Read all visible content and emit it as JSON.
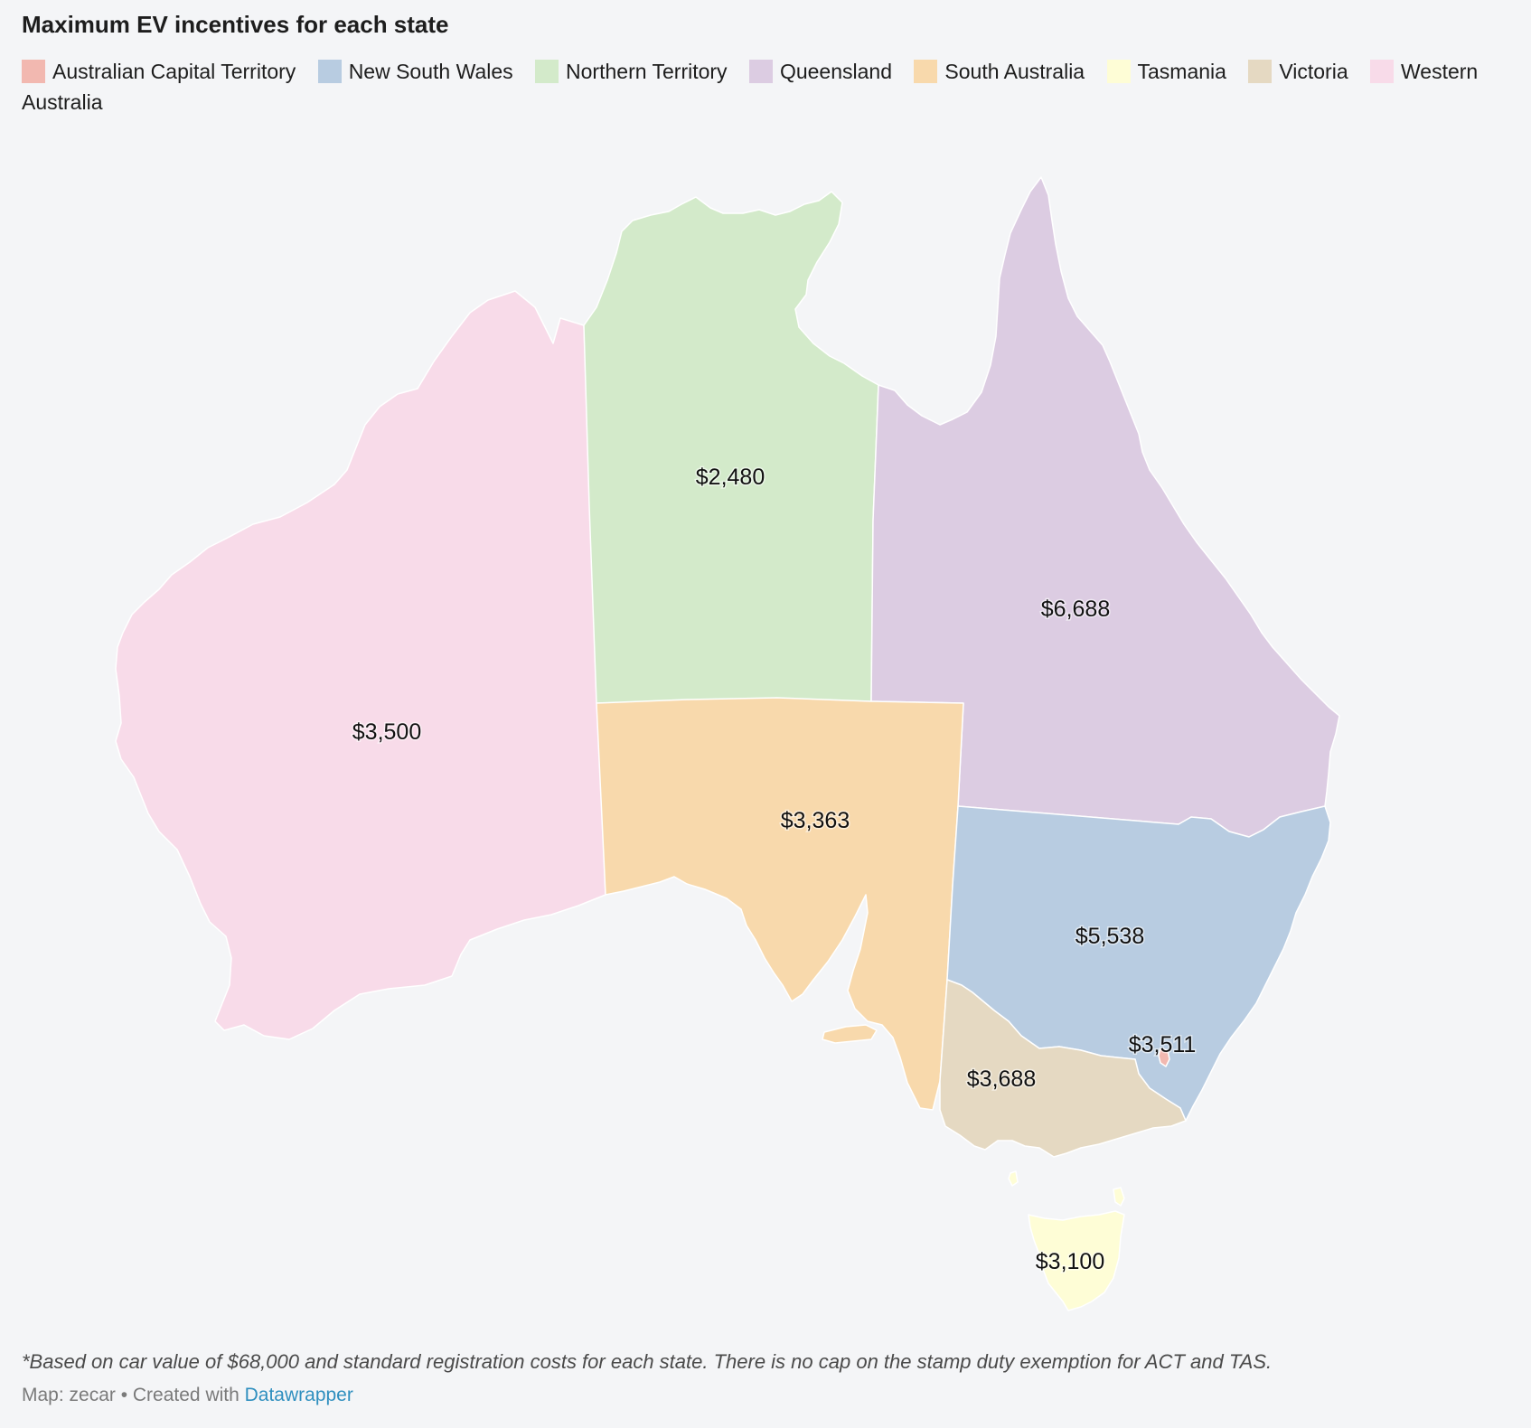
{
  "title": "Maximum EV incentives for each state",
  "legend": [
    {
      "label": "Australian Capital Territory",
      "color": "#f2b8b0"
    },
    {
      "label": "New South Wales",
      "color": "#b8cce1"
    },
    {
      "label": "Northern Territory",
      "color": "#d3eaca"
    },
    {
      "label": "Queensland",
      "color": "#dcccE2"
    },
    {
      "label": "South Australia",
      "color": "#f8d9ac"
    },
    {
      "label": "Tasmania",
      "color": "#fefdd6"
    },
    {
      "label": "Victoria",
      "color": "#e5d9c2"
    },
    {
      "label": "Western Australia",
      "color": "#f8dbe9"
    }
  ],
  "regions": {
    "wa": {
      "name": "Western Australia",
      "value": "$3,500"
    },
    "nt": {
      "name": "Northern Territory",
      "value": "$2,480"
    },
    "qld": {
      "name": "Queensland",
      "value": "$6,688"
    },
    "sa": {
      "name": "South Australia",
      "value": "$3,363"
    },
    "nsw": {
      "name": "New South Wales",
      "value": "$5,538"
    },
    "act": {
      "name": "Australian Capital Territory",
      "value": "$3,511"
    },
    "vic": {
      "name": "Victoria",
      "value": "$3,688"
    },
    "tas": {
      "name": "Tasmania",
      "value": "$3,100"
    }
  },
  "footnote": "*Based on car value of $68,000 and standard registration costs for each state. There is no cap on the stamp duty exemption for ACT and TAS.",
  "source": {
    "prefix": "Map: zecar • Created with ",
    "link_text": "Datawrapper"
  }
}
